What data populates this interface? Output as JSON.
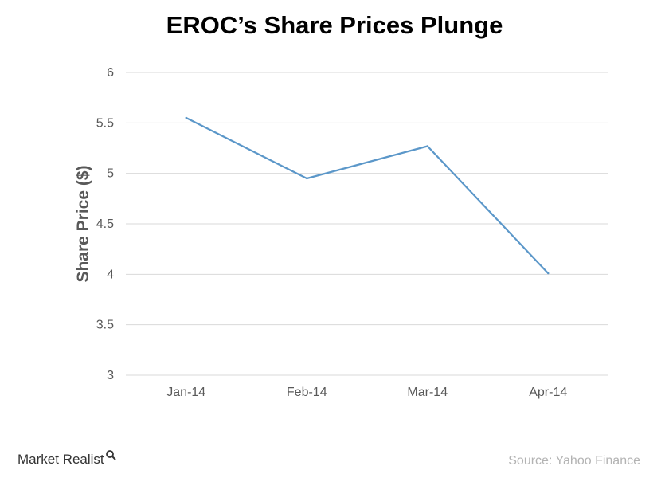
{
  "chart_data": {
    "type": "line",
    "title": "EROC’s Share Prices Plunge",
    "xlabel": "",
    "ylabel": "Share Price ($)",
    "categories": [
      "Jan-14",
      "Feb-14",
      "Mar-14",
      "Apr-14"
    ],
    "series": [
      {
        "values": [
          5.55,
          4.95,
          5.27,
          4.01
        ]
      }
    ],
    "ylim": [
      3,
      6
    ],
    "yticks": [
      3,
      3.5,
      4,
      4.5,
      5,
      5.5,
      6
    ],
    "grid": "horizontal",
    "legend": "none",
    "line_color": "#5b97c9",
    "grid_color": "#d9d9d9",
    "text_color": "#595959"
  },
  "footer": {
    "brand": "Market Realist",
    "brand_icon": "magnifier-icon",
    "source": "Source: Yahoo Finance"
  }
}
